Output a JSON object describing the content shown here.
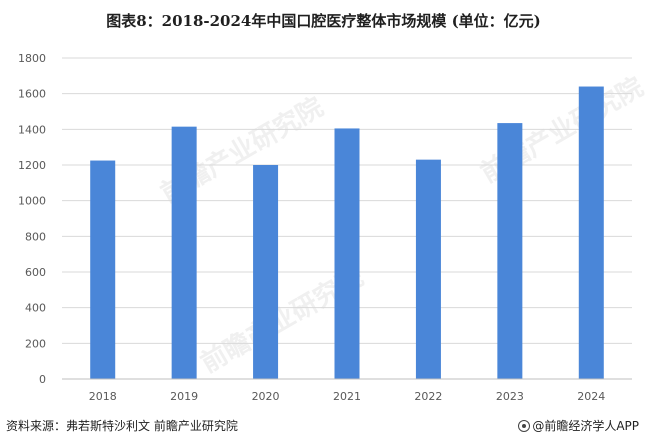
{
  "chart_data": {
    "type": "bar",
    "title": "图表8：2018-2024年中国口腔医疗整体市场规模 (单位：亿元)",
    "categories": [
      "2018",
      "2019",
      "2020",
      "2021",
      "2022",
      "2023",
      "2024"
    ],
    "values": [
      1225,
      1415,
      1200,
      1405,
      1230,
      1435,
      1640
    ],
    "ylim": [
      0,
      1800
    ],
    "yticks": [
      0,
      200,
      400,
      600,
      800,
      1000,
      1200,
      1400,
      1600,
      1800
    ],
    "grid": true,
    "color": "#4a86d8"
  },
  "footer": {
    "source": "资料来源：弗若斯特沙利文 前瞻产业研究院",
    "brand": "@前瞻经济学人APP"
  },
  "watermark": {
    "text": "前瞻产业研究院"
  }
}
